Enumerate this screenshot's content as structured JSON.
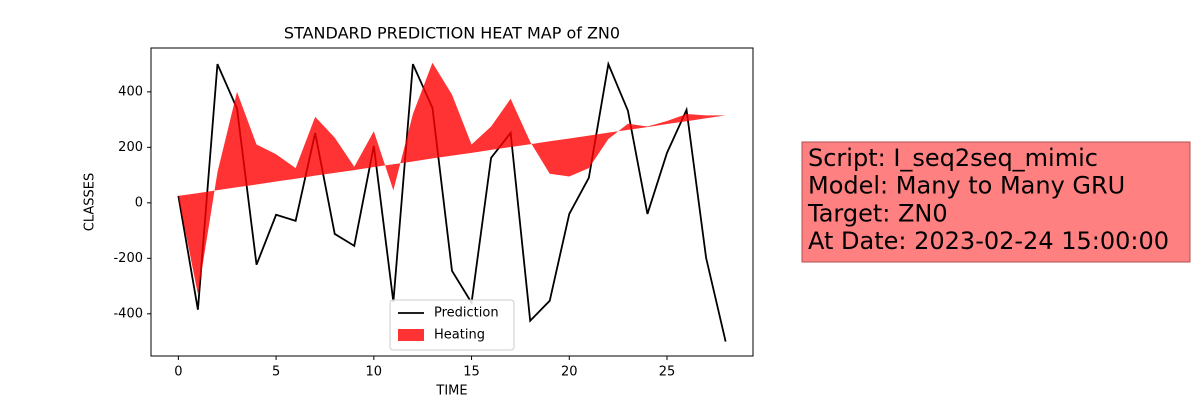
{
  "chart_data": {
    "type": "line",
    "title": "STANDARD PREDICTION HEAT MAP of ZN0",
    "xlabel": "TIME",
    "ylabel": "CLASSES",
    "x": [
      0,
      1,
      2,
      3,
      4,
      5,
      6,
      7,
      8,
      9,
      10,
      11,
      12,
      13,
      14,
      15,
      16,
      17,
      18,
      19,
      20,
      21,
      22,
      23,
      24,
      25,
      26,
      27,
      28
    ],
    "series": [
      {
        "name": "Prediction",
        "color": "#000000",
        "kind": "line",
        "values": [
          25,
          -385,
          500,
          340,
          -223,
          -43,
          -65,
          252,
          -112,
          -155,
          205,
          -357,
          500,
          342,
          -245,
          -360,
          162,
          252,
          -425,
          -353,
          -40,
          90,
          500,
          332,
          -40,
          180,
          335,
          -198,
          -500
        ]
      },
      {
        "name": "Heating",
        "color": "#ff0000",
        "kind": "fill_between",
        "values": [
          25,
          -330,
          110,
          400,
          210,
          175,
          125,
          310,
          235,
          130,
          258,
          45,
          320,
          505,
          390,
          210,
          275,
          375,
          220,
          105,
          95,
          125,
          230,
          285,
          275,
          295,
          320,
          315,
          315
        ],
        "base": [
          25,
          35,
          46,
          56,
          66,
          77,
          87,
          98,
          108,
          118,
          129,
          139,
          149,
          160,
          170,
          180,
          191,
          201,
          211,
          222,
          232,
          242,
          253,
          263,
          273,
          284,
          294,
          305,
          315
        ]
      }
    ],
    "xlim": [
      -1.4,
      29.4
    ],
    "xticks": [
      0,
      5,
      10,
      15,
      20,
      25
    ],
    "ylim": [
      -552,
      558
    ],
    "yticks": [
      -400,
      -200,
      0,
      200,
      400
    ],
    "legend": "lower center",
    "annotation": [
      "Script: I_seq2seq_mimic",
      "Model: Many to Many GRU",
      "Target: ZN0",
      "At Date: 2023-02-24 15:00:00"
    ]
  }
}
